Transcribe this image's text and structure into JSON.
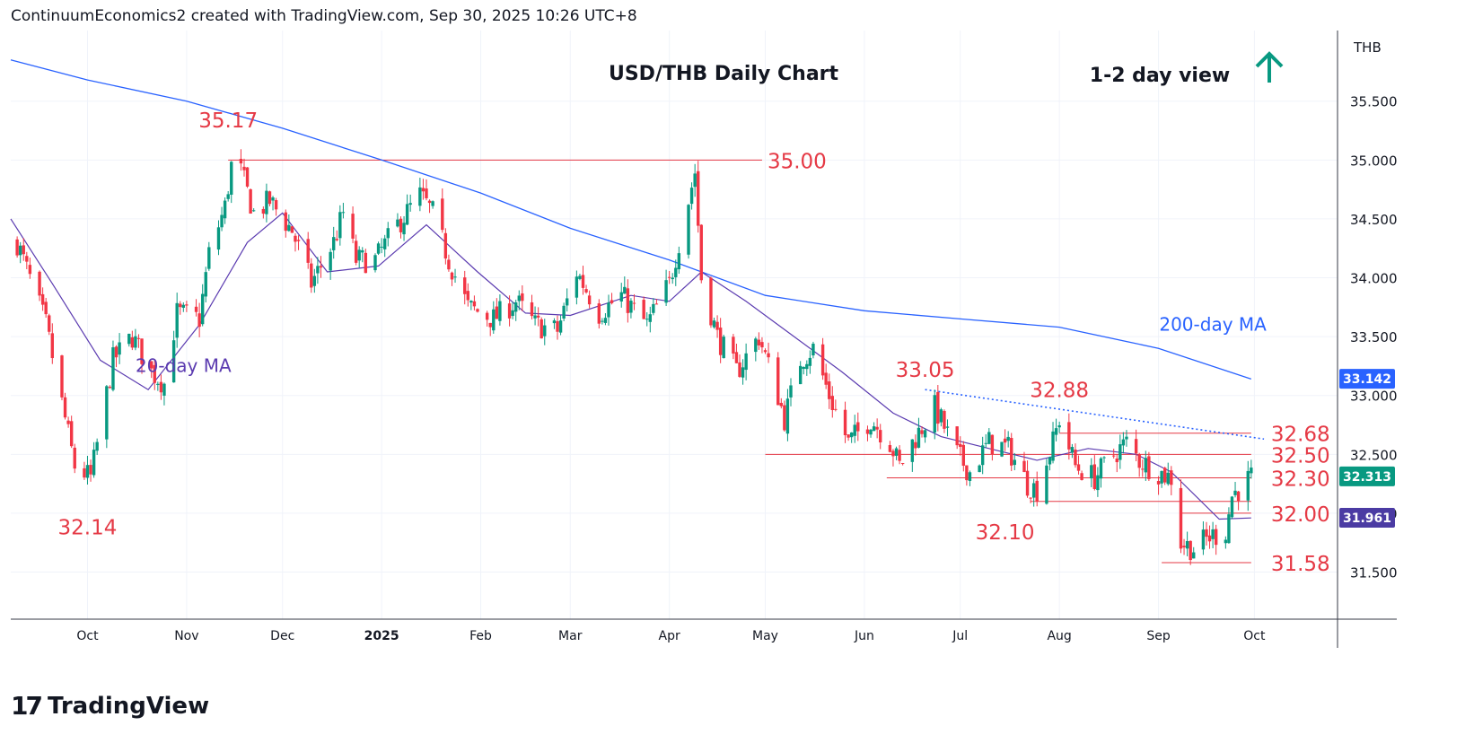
{
  "header": {
    "text": "ContinuumEconomics2 created with TradingView.com, Sep 30, 2025 10:26 UTC+8"
  },
  "brand": {
    "logo": "17",
    "name": "TradingView"
  },
  "colors": {
    "up": "#089981",
    "down": "#f23645",
    "ma200": "#2962ff",
    "ma20": "#5b3bb0",
    "level": "#e53945",
    "label": "#e53945",
    "arrow": "#089981",
    "axis": "#131722"
  },
  "chart_data": {
    "type": "candlestick",
    "title": "USD/THB Daily Chart",
    "view_label": "1-2 day view",
    "view_icon": "arrow-up-icon",
    "currency": "THB",
    "ylim": [
      31.1,
      36.1
    ],
    "y_ticks": [
      "35.500",
      "35.000",
      "34.500",
      "34.000",
      "33.500",
      "33.000",
      "32.500",
      "32.000",
      "31.500"
    ],
    "x_range": [
      "2024-09-07",
      "2025-10-27"
    ],
    "x_ticks": [
      {
        "label": "Oct",
        "date": "2024-10-01"
      },
      {
        "label": "Nov",
        "date": "2024-11-01"
      },
      {
        "label": "Dec",
        "date": "2024-12-01"
      },
      {
        "label": "2025",
        "date": "2025-01-01"
      },
      {
        "label": "Feb",
        "date": "2025-02-01"
      },
      {
        "label": "Mar",
        "date": "2025-03-01"
      },
      {
        "label": "Apr",
        "date": "2025-04-01"
      },
      {
        "label": "May",
        "date": "2025-05-01"
      },
      {
        "label": "Jun",
        "date": "2025-06-01"
      },
      {
        "label": "Jul",
        "date": "2025-07-01"
      },
      {
        "label": "Aug",
        "date": "2025-08-01"
      },
      {
        "label": "Sep",
        "date": "2025-09-01"
      },
      {
        "label": "Oct",
        "date": "2025-10-01"
      }
    ],
    "price_path": [
      [
        "2024-09-09",
        34.3
      ],
      [
        "2024-09-18",
        33.6
      ],
      [
        "2024-09-27",
        32.4
      ],
      [
        "2024-10-02",
        32.3
      ],
      [
        "2024-10-09",
        33.3
      ],
      [
        "2024-10-15",
        33.5
      ],
      [
        "2024-10-21",
        33.2
      ],
      [
        "2024-10-25",
        33.1
      ],
      [
        "2024-10-29",
        33.7
      ],
      [
        "2024-11-05",
        33.65
      ],
      [
        "2024-11-08",
        34.2
      ],
      [
        "2024-11-13",
        34.6
      ],
      [
        "2024-11-15",
        34.95
      ],
      [
        "2024-11-18",
        34.9
      ],
      [
        "2024-11-22",
        34.55
      ],
      [
        "2024-11-27",
        34.65
      ],
      [
        "2024-12-04",
        34.4
      ],
      [
        "2024-12-10",
        33.95
      ],
      [
        "2024-12-17",
        34.3
      ],
      [
        "2024-12-20",
        34.55
      ],
      [
        "2024-12-24",
        34.15
      ],
      [
        "2024-12-30",
        34.15
      ],
      [
        "2025-01-06",
        34.45
      ],
      [
        "2025-01-13",
        34.7
      ],
      [
        "2025-01-17",
        34.55
      ],
      [
        "2025-01-22",
        34.15
      ],
      [
        "2025-01-28",
        33.75
      ],
      [
        "2025-02-05",
        33.65
      ],
      [
        "2025-02-12",
        33.8
      ],
      [
        "2025-02-18",
        33.6
      ],
      [
        "2025-02-25",
        33.55
      ],
      [
        "2025-03-03",
        34.05
      ],
      [
        "2025-03-10",
        33.7
      ],
      [
        "2025-03-17",
        33.85
      ],
      [
        "2025-03-25",
        33.6
      ],
      [
        "2025-04-01",
        33.95
      ],
      [
        "2025-04-04",
        34.3
      ],
      [
        "2025-04-09",
        34.9
      ],
      [
        "2025-04-11",
        34.0
      ],
      [
        "2025-04-16",
        33.5
      ],
      [
        "2025-04-22",
        33.2
      ],
      [
        "2025-04-29",
        33.5
      ],
      [
        "2025-05-05",
        33.0
      ],
      [
        "2025-05-07",
        32.8
      ],
      [
        "2025-05-12",
        33.3
      ],
      [
        "2025-05-16",
        33.4
      ],
      [
        "2025-05-21",
        33.0
      ],
      [
        "2025-05-27",
        32.6
      ],
      [
        "2025-06-03",
        32.8
      ],
      [
        "2025-06-09",
        32.6
      ],
      [
        "2025-06-12",
        32.4
      ],
      [
        "2025-06-16",
        32.6
      ],
      [
        "2025-06-23",
        32.9
      ],
      [
        "2025-06-30",
        32.5
      ],
      [
        "2025-07-04",
        32.35
      ],
      [
        "2025-07-10",
        32.6
      ],
      [
        "2025-07-16",
        32.55
      ],
      [
        "2025-07-22",
        32.25
      ],
      [
        "2025-07-25",
        32.2
      ],
      [
        "2025-07-30",
        32.6
      ],
      [
        "2025-08-01",
        32.8
      ],
      [
        "2025-08-06",
        32.4
      ],
      [
        "2025-08-12",
        32.3
      ],
      [
        "2025-08-18",
        32.5
      ],
      [
        "2025-08-22",
        32.6
      ],
      [
        "2025-08-26",
        32.45
      ],
      [
        "2025-09-01",
        32.35
      ],
      [
        "2025-09-05",
        32.3
      ],
      [
        "2025-09-08",
        31.75
      ],
      [
        "2025-09-12",
        31.7
      ],
      [
        "2025-09-17",
        31.8
      ],
      [
        "2025-09-22",
        31.85
      ],
      [
        "2025-09-24",
        32.15
      ],
      [
        "2025-09-30",
        32.31
      ]
    ],
    "ma200": [
      [
        "2024-09-07",
        35.85
      ],
      [
        "2024-10-01",
        35.68
      ],
      [
        "2024-11-01",
        35.5
      ],
      [
        "2024-12-01",
        35.27
      ],
      [
        "2025-01-01",
        35.0
      ],
      [
        "2025-02-01",
        34.72
      ],
      [
        "2025-03-01",
        34.42
      ],
      [
        "2025-04-01",
        34.15
      ],
      [
        "2025-05-01",
        33.85
      ],
      [
        "2025-06-01",
        33.72
      ],
      [
        "2025-07-01",
        33.65
      ],
      [
        "2025-08-01",
        33.58
      ],
      [
        "2025-09-01",
        33.4
      ],
      [
        "2025-09-30",
        33.14
      ]
    ],
    "ma20": [
      [
        "2024-09-07",
        34.5
      ],
      [
        "2024-09-20",
        33.95
      ],
      [
        "2024-10-05",
        33.3
      ],
      [
        "2024-10-20",
        33.05
      ],
      [
        "2024-11-05",
        33.6
      ],
      [
        "2024-11-20",
        34.3
      ],
      [
        "2024-12-01",
        34.55
      ],
      [
        "2024-12-15",
        34.05
      ],
      [
        "2024-12-31",
        34.1
      ],
      [
        "2025-01-15",
        34.45
      ],
      [
        "2025-01-31",
        34.05
      ],
      [
        "2025-02-15",
        33.7
      ],
      [
        "2025-03-01",
        33.68
      ],
      [
        "2025-03-20",
        33.85
      ],
      [
        "2025-04-01",
        33.8
      ],
      [
        "2025-04-11",
        34.05
      ],
      [
        "2025-04-25",
        33.8
      ],
      [
        "2025-05-10",
        33.5
      ],
      [
        "2025-05-25",
        33.2
      ],
      [
        "2025-06-10",
        32.85
      ],
      [
        "2025-06-25",
        32.65
      ],
      [
        "2025-07-10",
        32.55
      ],
      [
        "2025-07-25",
        32.45
      ],
      [
        "2025-08-10",
        32.55
      ],
      [
        "2025-08-25",
        32.5
      ],
      [
        "2025-09-05",
        32.35
      ],
      [
        "2025-09-20",
        31.95
      ],
      [
        "2025-09-30",
        31.96
      ]
    ],
    "last_price": {
      "value": 32.313,
      "label": "32.313",
      "color": "#089981"
    },
    "ma200_last": {
      "value": 33.142,
      "label": "33.142",
      "color": "#2962ff"
    },
    "ma20_last": {
      "value": 31.961,
      "label": "31.961",
      "color": "#4b3ba3"
    },
    "levels": [
      {
        "value": 35.0,
        "label": "35.00",
        "from": "2024-11-14",
        "to": "2025-04-30"
      },
      {
        "value": 32.68,
        "label": "32.68",
        "from": "2025-08-01",
        "to": "2025-09-30"
      },
      {
        "value": 32.5,
        "label": "32.50",
        "from": "2025-05-01",
        "to": "2025-09-30"
      },
      {
        "value": 32.3,
        "label": "32.30",
        "from": "2025-06-08",
        "to": "2025-09-30"
      },
      {
        "value": 32.1,
        "label": "",
        "from": "2025-07-23",
        "to": "2025-09-30"
      },
      {
        "value": 32.0,
        "label": "32.00",
        "from": "2025-09-08",
        "to": "2025-09-30"
      },
      {
        "value": 31.58,
        "label": "31.58",
        "from": "2025-09-02",
        "to": "2025-09-30"
      }
    ],
    "trendline": {
      "from": [
        "2025-06-20",
        33.05
      ],
      "to": [
        "2025-10-04",
        32.63
      ],
      "style": "dotted"
    },
    "annotations": [
      {
        "text": "35.17",
        "date": "2024-11-14",
        "value": 35.17,
        "anchor": "above"
      },
      {
        "text": "32.14",
        "date": "2024-10-01",
        "value": 32.14,
        "anchor": "below"
      },
      {
        "text": "33.05",
        "date": "2025-06-20",
        "value": 33.05,
        "anchor": "above"
      },
      {
        "text": "32.88",
        "date": "2025-08-01",
        "value": 32.88,
        "anchor": "above"
      },
      {
        "text": "32.10",
        "date": "2025-07-15",
        "value": 32.1,
        "anchor": "below"
      }
    ],
    "ma_labels": [
      {
        "text": "200-day MA",
        "date": "2025-09-18",
        "value": 33.55,
        "color": "#2962ff"
      },
      {
        "text": "20-day MA",
        "date": "2024-10-31",
        "value": 33.2,
        "color": "#5b3bb0"
      }
    ]
  }
}
